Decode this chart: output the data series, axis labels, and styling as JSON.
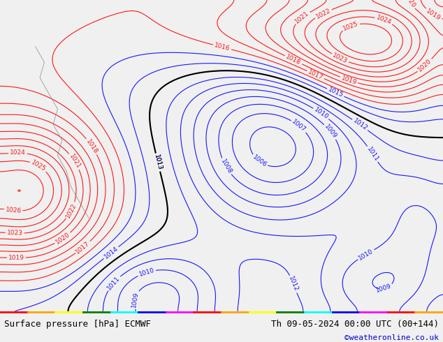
{
  "title_left": "Surface pressure [hPa] ECMWF",
  "title_right": "Th 09-05-2024 00:00 UTC (00+144)",
  "copyright": "©weatheronline.co.uk",
  "bg_color": "#f0f0f0",
  "map_bg": "#b0d080",
  "fig_width": 6.34,
  "fig_height": 4.9,
  "bottom_bar_color": "#ffffff",
  "title_fontsize": 9,
  "copyright_color": "#0000cc"
}
